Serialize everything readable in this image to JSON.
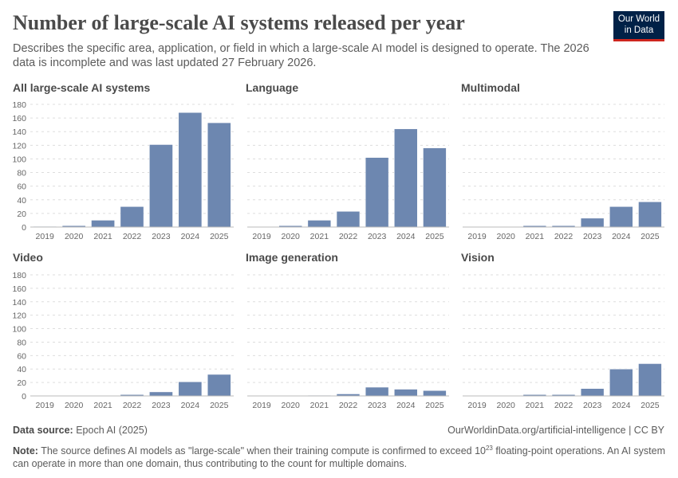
{
  "title": "Number of large-scale AI systems released per year",
  "subtitle": "Describes the specific area, application, or field in which a large-scale AI model is designed to operate. The 2026 data is incomplete and was last updated 27 February 2026.",
  "logo": {
    "line1": "Our World",
    "line2": "in Data"
  },
  "footer": {
    "source_label": "Data source:",
    "source": "Epoch AI (2025)",
    "url": "OurWorldinData.org/artificial-intelligence | CC BY",
    "note_label": "Note:",
    "note_pre": "The source defines AI models as \"large-scale\" when their training compute is confirmed to exceed 10",
    "note_sup": "23",
    "note_post": " floating-point operations. An AI system can operate in more than one domain, thus contributing to the count for multiple domains."
  },
  "colors": {
    "bar": "#6d87b0",
    "grid": "#dddddd",
    "axis": "#bbbbbb",
    "text": "#666666"
  },
  "chart_data": [
    {
      "type": "bar",
      "title": "All large-scale AI systems",
      "categories": [
        "2019",
        "2020",
        "2021",
        "2022",
        "2023",
        "2024",
        "2025"
      ],
      "values": [
        1,
        2,
        10,
        30,
        121,
        168,
        153
      ],
      "ylim": [
        0,
        180
      ],
      "yticks": [
        0,
        20,
        40,
        60,
        80,
        100,
        120,
        140,
        160,
        180
      ],
      "grid": true
    },
    {
      "type": "bar",
      "title": "Language",
      "categories": [
        "2019",
        "2020",
        "2021",
        "2022",
        "2023",
        "2024",
        "2025"
      ],
      "values": [
        0,
        2,
        10,
        23,
        102,
        144,
        116
      ],
      "ylim": [
        0,
        180
      ],
      "yticks": [
        0,
        20,
        40,
        60,
        80,
        100,
        120,
        140,
        160,
        180
      ],
      "grid": true
    },
    {
      "type": "bar",
      "title": "Multimodal",
      "categories": [
        "2019",
        "2020",
        "2021",
        "2022",
        "2023",
        "2024",
        "2025"
      ],
      "values": [
        0,
        0,
        2,
        2,
        13,
        30,
        37
      ],
      "ylim": [
        0,
        180
      ],
      "yticks": [
        0,
        20,
        40,
        60,
        80,
        100,
        120,
        140,
        160,
        180
      ],
      "grid": true
    },
    {
      "type": "bar",
      "title": "Video",
      "categories": [
        "2019",
        "2020",
        "2021",
        "2022",
        "2023",
        "2024",
        "2025"
      ],
      "values": [
        0,
        0,
        0,
        2,
        6,
        21,
        32
      ],
      "ylim": [
        0,
        180
      ],
      "yticks": [
        0,
        20,
        40,
        60,
        80,
        100,
        120,
        140,
        160,
        180
      ],
      "grid": true
    },
    {
      "type": "bar",
      "title": "Image generation",
      "categories": [
        "2019",
        "2020",
        "2021",
        "2022",
        "2023",
        "2024",
        "2025"
      ],
      "values": [
        0,
        0,
        1,
        3,
        13,
        10,
        8
      ],
      "ylim": [
        0,
        180
      ],
      "yticks": [
        0,
        20,
        40,
        60,
        80,
        100,
        120,
        140,
        160,
        180
      ],
      "grid": true
    },
    {
      "type": "bar",
      "title": "Vision",
      "categories": [
        "2019",
        "2020",
        "2021",
        "2022",
        "2023",
        "2024",
        "2025"
      ],
      "values": [
        0,
        0,
        2,
        2,
        11,
        40,
        48
      ],
      "ylim": [
        0,
        180
      ],
      "yticks": [
        0,
        20,
        40,
        60,
        80,
        100,
        120,
        140,
        160,
        180
      ],
      "grid": true
    }
  ]
}
